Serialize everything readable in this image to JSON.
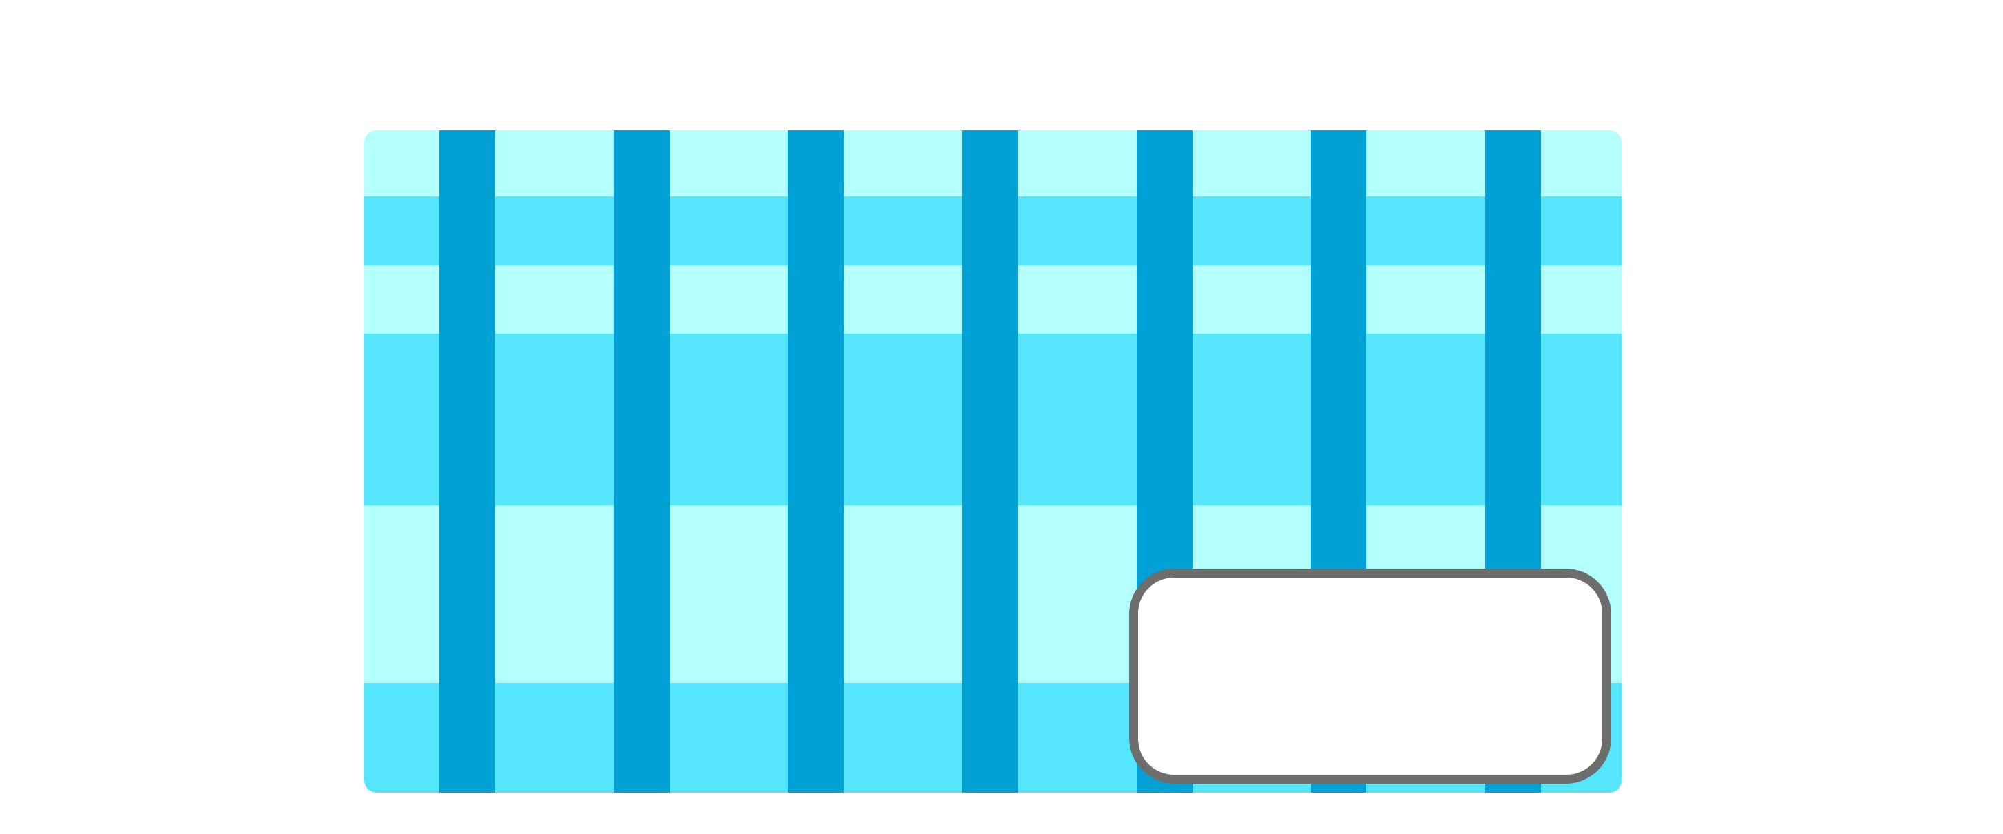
{
  "colors": {
    "background": "#ffffff",
    "band_light": "#b3fffb",
    "band_medium": "#55e5ff",
    "column": "#00a1d5",
    "box_border": "#6d6d6d",
    "box_fill": "#ffffff"
  },
  "panel": {
    "bands": [
      "light",
      "medium",
      "light",
      "medium",
      "light",
      "medium"
    ],
    "column_count": 7
  },
  "overlay_box": {
    "text": ""
  }
}
